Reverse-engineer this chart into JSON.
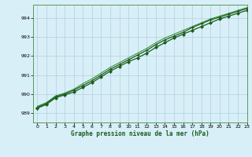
{
  "title": "Graphe pression niveau de la mer (hPa)",
  "bg_color": "#d8eff8",
  "grid_color": "#b0cfe0",
  "line_color_main": "#1a5c1a",
  "line_color_light": "#2d8c2d",
  "xlim": [
    -0.5,
    23
  ],
  "ylim": [
    988.5,
    994.7
  ],
  "yticks": [
    989,
    990,
    991,
    992,
    993,
    994
  ],
  "xticks": [
    0,
    1,
    2,
    3,
    4,
    5,
    6,
    7,
    8,
    9,
    10,
    11,
    12,
    13,
    14,
    15,
    16,
    17,
    18,
    19,
    20,
    21,
    22,
    23
  ],
  "series1": [
    989.3,
    989.5,
    989.85,
    990.0,
    990.2,
    990.45,
    990.7,
    991.0,
    991.3,
    991.55,
    991.8,
    992.05,
    992.3,
    992.6,
    992.85,
    993.05,
    993.25,
    993.5,
    993.7,
    993.9,
    994.05,
    994.2,
    994.35,
    994.5
  ],
  "series2": [
    989.25,
    989.45,
    989.8,
    989.95,
    990.1,
    990.35,
    990.6,
    990.9,
    991.2,
    991.45,
    991.7,
    991.9,
    992.15,
    992.45,
    992.7,
    992.95,
    993.15,
    993.35,
    993.55,
    993.75,
    993.95,
    994.1,
    994.25,
    994.4
  ],
  "series3": [
    989.35,
    989.55,
    989.9,
    990.05,
    990.25,
    990.55,
    990.8,
    991.1,
    991.4,
    991.65,
    991.9,
    992.15,
    992.4,
    992.7,
    992.95,
    993.15,
    993.35,
    993.55,
    993.75,
    993.95,
    994.1,
    994.25,
    994.4,
    994.55
  ]
}
